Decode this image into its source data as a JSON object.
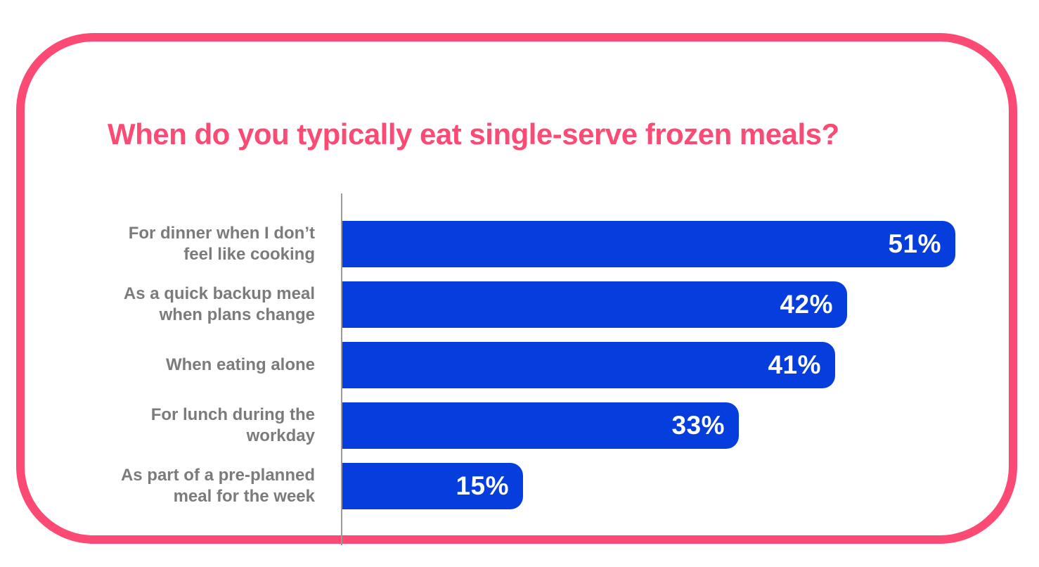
{
  "title": {
    "text": "When do you typically eat single-serve frozen meals?"
  },
  "colors": {
    "pink": "#FB4B74",
    "bar_blue": "#053EDD",
    "category_label_gray": "#7B7B7B",
    "axis_gray": "#9B9B9B",
    "value_label_white": "#FFFFFF",
    "card_background": "#FFFFFF"
  },
  "chart_data": {
    "type": "bar",
    "orientation": "horizontal",
    "title": "When do you typically eat single-serve frozen meals?",
    "categories": [
      "For dinner when I don’t\nfeel like cooking",
      "As a quick backup meal\nwhen plans change",
      "When eating alone",
      "For lunch during the\nworkday",
      "As part of a pre-planned\nmeal for the week"
    ],
    "values": [
      51,
      42,
      41,
      33,
      15
    ],
    "value_labels": [
      "51%",
      "42%",
      "41%",
      "33%",
      "15%"
    ],
    "xlabel": "",
    "ylabel": "",
    "xlim": [
      0,
      53
    ],
    "grid": false,
    "legend": false,
    "value_label_position": "inside-end",
    "bar_color": "#053EDD",
    "value_label_color": "#FFFFFF",
    "category_label_color": "#7B7B7B",
    "axis_line_color": "#9B9B9B"
  }
}
